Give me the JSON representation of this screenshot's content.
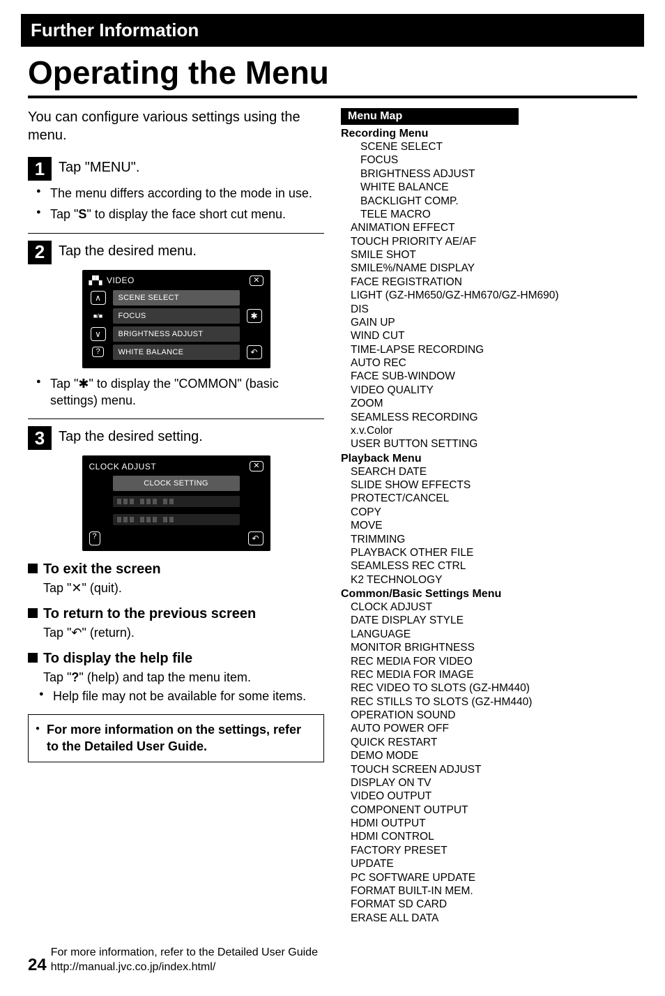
{
  "header": {
    "section": "Further Information"
  },
  "title": "Operating the Menu",
  "intro": "You can configure various settings using the menu.",
  "steps": {
    "s1": {
      "num": "1",
      "text": "Tap \"MENU\".",
      "bullets": [
        "The menu differs according to the mode in use.",
        "Tap \"Ⓢ\" to display the face short cut menu."
      ]
    },
    "s2": {
      "num": "2",
      "text": "Tap the desired menu.",
      "screenshot": {
        "title": "VIDEO",
        "close": "✕",
        "items": [
          "SCENE SELECT",
          "FOCUS",
          "BRIGHTNESS ADJUST",
          "WHITE BALANCE"
        ],
        "up": "∧",
        "down": "∨",
        "gear": "✱",
        "back": "↶",
        "help": "?",
        "mid": "■/■"
      },
      "bullets": [
        "Tap \"✱\" to display the \"COMMON\" (basic settings) menu."
      ]
    },
    "s3": {
      "num": "3",
      "text": "Tap the desired setting.",
      "screenshot": {
        "title": "CLOCK ADJUST",
        "close": "✕",
        "items": [
          "CLOCK SETTING"
        ],
        "back": "↶",
        "help": "?"
      }
    }
  },
  "subsections": {
    "exit": {
      "title": "To exit the screen",
      "text": "Tap \"✕\" (quit)."
    },
    "return": {
      "title": "To return to the previous screen",
      "text": "Tap \"↶\" (return)."
    },
    "help": {
      "title": "To display the help file",
      "text": "Tap \"?\" (help) and tap the menu item.",
      "bullets": [
        "Help file may not be available for some items."
      ]
    }
  },
  "infobox": "For more information on the settings, refer to the Detailed User Guide.",
  "menumap": {
    "header": "Menu Map",
    "recording": {
      "title": "Recording Menu",
      "indented": [
        "SCENE SELECT",
        "FOCUS",
        "BRIGHTNESS ADJUST",
        "WHITE BALANCE",
        "BACKLIGHT COMP.",
        "TELE MACRO"
      ],
      "items": [
        "ANIMATION EFFECT",
        "TOUCH PRIORITY AE/AF",
        "SMILE SHOT",
        "SMILE%/NAME DISPLAY",
        "FACE REGISTRATION",
        "LIGHT (GZ-HM650/GZ-HM670/GZ-HM690)",
        "DIS",
        "GAIN UP",
        "WIND CUT",
        "TIME-LAPSE RECORDING",
        "AUTO REC",
        "FACE SUB-WINDOW",
        "VIDEO QUALITY",
        "ZOOM",
        "SEAMLESS RECORDING",
        "x.v.Color",
        "USER BUTTON SETTING"
      ]
    },
    "playback": {
      "title": "Playback Menu",
      "items": [
        "SEARCH DATE",
        "SLIDE SHOW EFFECTS",
        "PROTECT/CANCEL",
        "COPY",
        "MOVE",
        "TRIMMING",
        "PLAYBACK OTHER FILE",
        "SEAMLESS REC CTRL",
        "K2 TECHNOLOGY"
      ]
    },
    "common": {
      "title": "Common/Basic Settings Menu",
      "items": [
        "CLOCK ADJUST",
        "DATE DISPLAY STYLE",
        "LANGUAGE",
        "MONITOR BRIGHTNESS",
        "REC MEDIA FOR VIDEO",
        "REC MEDIA FOR IMAGE",
        "REC VIDEO TO SLOTS (GZ-HM440)",
        "REC STILLS TO SLOTS (GZ-HM440)",
        "OPERATION SOUND",
        "AUTO POWER OFF",
        "QUICK RESTART",
        "DEMO MODE",
        "TOUCH SCREEN ADJUST",
        "DISPLAY ON TV",
        "VIDEO OUTPUT",
        "COMPONENT OUTPUT",
        "HDMI OUTPUT",
        "HDMI CONTROL",
        "FACTORY PRESET",
        "UPDATE",
        "PC SOFTWARE UPDATE",
        "FORMAT BUILT-IN MEM.",
        "FORMAT SD CARD",
        "ERASE ALL DATA"
      ]
    }
  },
  "footer": {
    "page": "24",
    "line1": "For more information, refer to the Detailed User Guide",
    "line2": "http://manual.jvc.co.jp/index.html/"
  }
}
